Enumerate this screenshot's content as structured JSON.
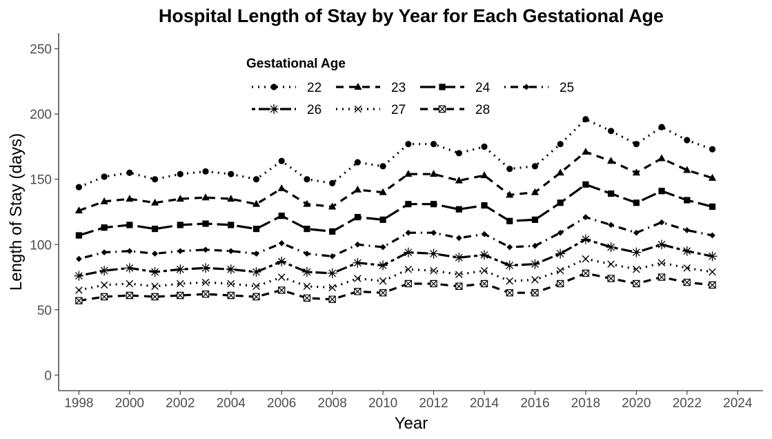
{
  "chart_data": {
    "type": "line",
    "title": "Hospital Length of Stay by Year for Each Gestational Age",
    "xlabel": "Year",
    "ylabel": "Length of Stay (days)",
    "xlim": [
      1997.2,
      2025
    ],
    "ylim": [
      -12,
      262
    ],
    "x_ticks": [
      1998,
      2000,
      2002,
      2004,
      2006,
      2008,
      2010,
      2012,
      2014,
      2016,
      2018,
      2020,
      2022,
      2024
    ],
    "y_ticks": [
      0,
      50,
      100,
      150,
      200,
      250
    ],
    "grid": false,
    "legend_title": "Gestational Age",
    "legend_position": "top-center, inside plot",
    "x": [
      1998,
      1999,
      2000,
      2001,
      2002,
      2003,
      2004,
      2005,
      2006,
      2007,
      2008,
      2009,
      2010,
      2011,
      2012,
      2013,
      2014,
      2015,
      2016,
      2017,
      2018,
      2019,
      2020,
      2021,
      2022,
      2023
    ],
    "series": [
      {
        "name": "22",
        "line": "dotted",
        "marker": "circle",
        "values": [
          144,
          152,
          155,
          150,
          154,
          156,
          154,
          150,
          164,
          150,
          147,
          163,
          160,
          177,
          177,
          170,
          175,
          158,
          160,
          177,
          196,
          187,
          177,
          190,
          180,
          173
        ]
      },
      {
        "name": "23",
        "line": "dashed",
        "marker": "triangle",
        "values": [
          126,
          133,
          135,
          132,
          135,
          136,
          135,
          131,
          143,
          131,
          129,
          142,
          140,
          154,
          154,
          149,
          153,
          138,
          140,
          155,
          171,
          164,
          155,
          166,
          157,
          151
        ]
      },
      {
        "name": "24",
        "line": "longdash",
        "marker": "square",
        "values": [
          107,
          113,
          115,
          112,
          115,
          116,
          115,
          112,
          122,
          112,
          110,
          121,
          119,
          131,
          131,
          127,
          130,
          118,
          119,
          132,
          146,
          139,
          132,
          141,
          134,
          129
        ]
      },
      {
        "name": "25",
        "line": "dotdash",
        "marker": "diamond",
        "values": [
          89,
          94,
          95,
          93,
          95,
          96,
          95,
          93,
          101,
          93,
          91,
          100,
          98,
          109,
          109,
          105,
          108,
          98,
          99,
          109,
          121,
          115,
          109,
          117,
          111,
          107
        ]
      },
      {
        "name": "26",
        "line": "twodash",
        "marker": "asterisk",
        "values": [
          76,
          80,
          82,
          79,
          81,
          82,
          81,
          79,
          87,
          79,
          78,
          86,
          84,
          94,
          93,
          90,
          92,
          84,
          85,
          93,
          104,
          98,
          94,
          100,
          95,
          91
        ]
      },
      {
        "name": "27",
        "line": "dotted",
        "marker": "cross",
        "values": [
          65,
          69,
          70,
          68,
          70,
          71,
          70,
          68,
          75,
          68,
          67,
          74,
          72,
          81,
          80,
          77,
          80,
          72,
          73,
          80,
          89,
          85,
          81,
          86,
          82,
          79
        ]
      },
      {
        "name": "28",
        "line": "dashed",
        "marker": "square-cross",
        "values": [
          57,
          60,
          61,
          60,
          61,
          62,
          61,
          60,
          65,
          59,
          58,
          64,
          63,
          70,
          70,
          68,
          70,
          63,
          63,
          70,
          78,
          74,
          70,
          75,
          71,
          69
        ]
      }
    ]
  }
}
